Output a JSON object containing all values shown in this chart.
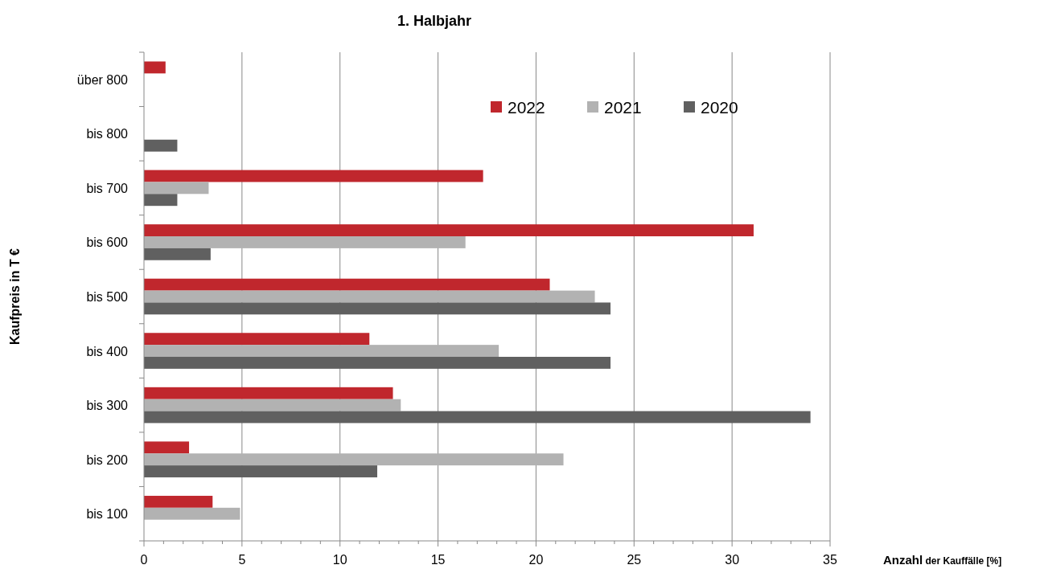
{
  "chart_data": {
    "type": "bar",
    "orientation": "horizontal",
    "title": "1. Halbjahr",
    "xlabel": "Anzahl der Kauffälle [%]",
    "ylabel": "Kaufpreis in T €",
    "categories": [
      "über 800",
      "bis 800",
      "bis 700",
      "bis 600",
      "bis 500",
      "bis 400",
      "bis 300",
      "bis 200",
      "bis 100"
    ],
    "series": [
      {
        "name": "2022",
        "color": "#c0272d",
        "values": [
          1.1,
          null,
          17.3,
          31.1,
          20.7,
          11.5,
          12.7,
          2.3,
          3.5
        ]
      },
      {
        "name": "2021",
        "color": "#b2b2b2",
        "values": [
          null,
          null,
          3.3,
          16.4,
          23.0,
          18.1,
          13.1,
          21.4,
          4.9
        ]
      },
      {
        "name": "2020",
        "color": "#606060",
        "values": [
          null,
          1.7,
          1.7,
          3.4,
          23.8,
          23.8,
          34.0,
          11.9,
          null
        ]
      }
    ],
    "xlim": [
      0,
      35
    ],
    "xticks": [
      0,
      {
        "value": 1,
        "label": null
      },
      {
        "value": 2,
        "label": null
      },
      {
        "value": 3,
        "label": null
      },
      {
        "value": 4,
        "label": null
      },
      5,
      {
        "value": 6,
        "label": null
      },
      {
        "value": 7,
        "label": null
      },
      {
        "value": 8,
        "label": null
      },
      {
        "value": 9,
        "label": null
      },
      10,
      {
        "value": 11,
        "label": null
      },
      {
        "value": 12,
        "label": null
      },
      {
        "value": 13,
        "label": null
      },
      {
        "value": 14,
        "label": null
      },
      15,
      {
        "value": 16,
        "label": null
      },
      {
        "value": 17,
        "label": null
      },
      {
        "value": 18,
        "label": null
      },
      {
        "value": 19,
        "label": null
      },
      20,
      {
        "value": 21,
        "label": null
      },
      {
        "value": 22,
        "label": null
      },
      {
        "value": 23,
        "label": null
      },
      {
        "value": 24,
        "label": null
      },
      25,
      {
        "value": 26,
        "label": null
      },
      {
        "value": 27,
        "label": null
      },
      {
        "value": 28,
        "label": null
      },
      {
        "value": 29,
        "label": null
      },
      30,
      {
        "value": 31,
        "label": null
      },
      {
        "value": 32,
        "label": null
      },
      {
        "value": 33,
        "label": null
      },
      {
        "value": 34,
        "label": null
      },
      35
    ],
    "grid": "x",
    "legend": "top right"
  }
}
